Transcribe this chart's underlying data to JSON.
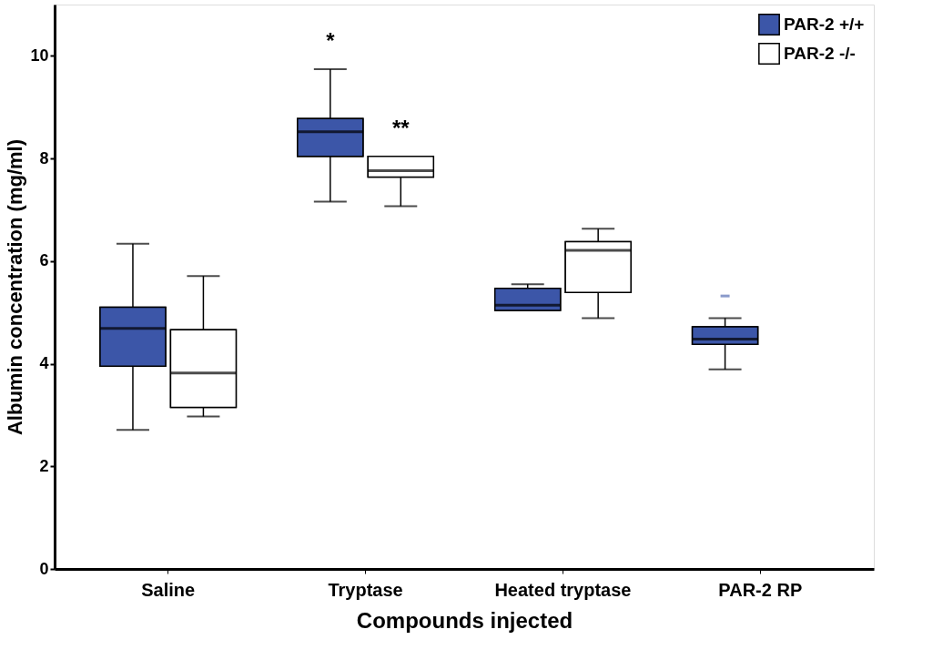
{
  "chart_data": {
    "type": "box",
    "xlabel": "Compounds injected",
    "ylabel": "Albumin concentration (mg/ml)",
    "categories": [
      "Saline",
      "Tryptase",
      "Heated tryptase",
      "PAR-2 RP"
    ],
    "ylim": [
      0,
      11
    ],
    "yticks": [
      0,
      2,
      4,
      6,
      8,
      10
    ],
    "grid": false,
    "legend": "top right",
    "series": [
      {
        "name": "PAR-2 +/+",
        "color": "#3c56a8",
        "boxes": [
          {
            "low": 2.71,
            "q1": 3.95,
            "median": 4.69,
            "q3": 5.1,
            "high": 6.34
          },
          {
            "low": 7.16,
            "q1": 8.04,
            "median": 8.52,
            "q3": 8.78,
            "high": 9.74
          },
          {
            "low": 5.04,
            "q1": 5.04,
            "median": 5.14,
            "q3": 5.47,
            "high": 5.55
          },
          {
            "low": 3.89,
            "q1": 4.38,
            "median": 4.48,
            "q3": 4.72,
            "high": 4.89,
            "outliers": [
              5.32
            ]
          }
        ]
      },
      {
        "name": "PAR-2 -/-",
        "color": "#ffffff",
        "boxes": [
          {
            "low": 2.97,
            "q1": 3.15,
            "median": 3.82,
            "q3": 4.66,
            "high": 5.71
          },
          {
            "low": 7.07,
            "q1": 7.64,
            "median": 7.76,
            "q3": 8.04,
            "high": 8.04
          },
          {
            "low": 4.89,
            "q1": 5.39,
            "median": 6.21,
            "q3": 6.38,
            "high": 6.63
          },
          null
        ]
      }
    ],
    "annotations": [
      "*",
      {
        "text": "**",
        "x": "Tryptase",
        "y": 8.04
      }
    ]
  }
}
